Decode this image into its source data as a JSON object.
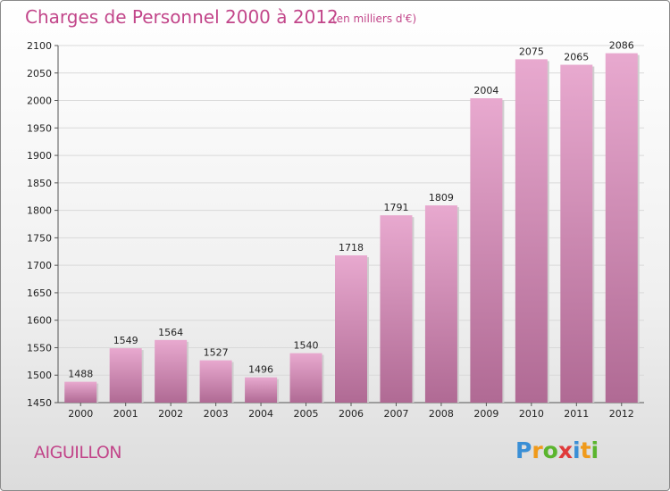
{
  "header": {
    "title": "Charges de Personnel 2000 à 2012",
    "unit": "(en milliers d'€)"
  },
  "footer": {
    "town": "AIGUILLON",
    "logo_letters": [
      "P",
      "r",
      "o",
      "x",
      "i",
      "t",
      "i"
    ],
    "logo_colors": [
      "#3a8fd6",
      "#f09a1a",
      "#5bb52e",
      "#e03a3a",
      "#3a8fd6",
      "#f09a1a",
      "#5bb52e"
    ]
  },
  "colors": {
    "bar_top": "#e8a9cf",
    "bar_bottom": "#b06a94",
    "title": "#c2468a"
  },
  "chart_data": {
    "type": "bar",
    "title": "Charges de Personnel 2000 à 2012",
    "subtitle": "(en milliers d'€)",
    "categories": [
      "2000",
      "2001",
      "2002",
      "2003",
      "2004",
      "2005",
      "2006",
      "2007",
      "2008",
      "2009",
      "2010",
      "2011",
      "2012"
    ],
    "values": [
      1488,
      1549,
      1564,
      1527,
      1496,
      1540,
      1718,
      1791,
      1809,
      2004,
      2075,
      2065,
      2086
    ],
    "ylim": [
      1450,
      2100
    ],
    "yticks": [
      1450,
      1500,
      1550,
      1600,
      1650,
      1700,
      1750,
      1800,
      1850,
      1900,
      1950,
      2000,
      2050,
      2100
    ],
    "grid": true
  }
}
